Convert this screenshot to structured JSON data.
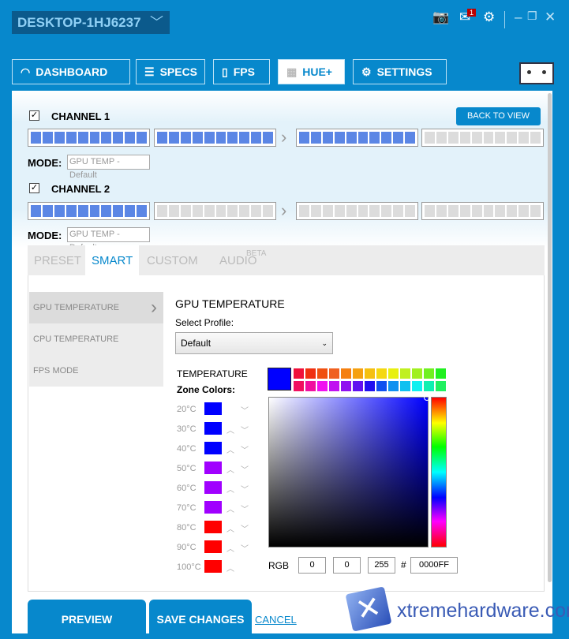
{
  "header": {
    "device": "DESKTOP-1HJ6237",
    "notification_count": "1"
  },
  "tabs": [
    {
      "label": "DASHBOARD",
      "icon": "gauge-icon"
    },
    {
      "label": "SPECS",
      "icon": "list-icon"
    },
    {
      "label": "FPS",
      "icon": "tablet-icon"
    },
    {
      "label": "HUE+",
      "icon": "grid-icon",
      "active": true
    },
    {
      "label": "SETTINGS",
      "icon": "gear-icon"
    }
  ],
  "channels": [
    {
      "label": "CHANNEL 1",
      "checked": true,
      "mode_label": "MODE:",
      "mode": "GPU TEMP - Default",
      "strips_lit": [
        true,
        true,
        true,
        false
      ]
    },
    {
      "label": "CHANNEL 2",
      "checked": true,
      "mode_label": "MODE:",
      "mode": "GPU TEMP - Default",
      "strips_lit": [
        true,
        false,
        false,
        false
      ]
    }
  ],
  "back_to_view": "BACK TO VIEW",
  "subtabs": [
    {
      "label": "PRESET"
    },
    {
      "label": "SMART",
      "active": true
    },
    {
      "label": "CUSTOM"
    },
    {
      "label": "AUDIO",
      "badge": "BETA"
    }
  ],
  "menu": [
    {
      "label": "GPU TEMPERATURE",
      "active": true
    },
    {
      "label": "CPU TEMPERATURE"
    },
    {
      "label": "FPS MODE"
    }
  ],
  "smart": {
    "title": "GPU TEMPERATURE",
    "profile_label": "Select Profile:",
    "profile": "Default",
    "zone_title": "TEMPERATURE",
    "zone_sub": "Zone Colors:",
    "zones": [
      {
        "t": "20°C",
        "c": "#0000ff"
      },
      {
        "t": "30°C",
        "c": "#0000ff"
      },
      {
        "t": "40°C",
        "c": "#0000ff"
      },
      {
        "t": "50°C",
        "c": "#a000ff"
      },
      {
        "t": "60°C",
        "c": "#a000ff"
      },
      {
        "t": "70°C",
        "c": "#a000ff"
      },
      {
        "t": "80°C",
        "c": "#ff0000"
      },
      {
        "t": "90°C",
        "c": "#ff0000"
      },
      {
        "t": "100°C",
        "c": "#ff0000"
      }
    ]
  },
  "picker": {
    "current": "#0000ff",
    "palette": [
      [
        "#f0103a",
        "#f03010",
        "#f05010",
        "#f06020",
        "#f58010",
        "#f5a010",
        "#f5c010",
        "#f5d810",
        "#e8f010",
        "#c0f020",
        "#a0f020",
        "#70f020",
        "#20f020"
      ],
      [
        "#f01060",
        "#f010a0",
        "#f010f0",
        "#c010f0",
        "#9010f0",
        "#6010f0",
        "#2010f0",
        "#1050f0",
        "#1090f0",
        "#10c0f0",
        "#10f0f0",
        "#10f0b0",
        "#20f060"
      ]
    ],
    "rgb_label": "RGB",
    "r": "0",
    "g": "0",
    "b": "255",
    "hash": "#",
    "hex": "0000FF"
  },
  "footer": {
    "preview": "PREVIEW",
    "save": "SAVE CHANGES",
    "cancel": "CANCEL"
  },
  "watermark": "xtremehardware.com",
  "colors": {
    "accent": "#0788cc",
    "led_on": "#5b86e5",
    "led_off": "#dcdcdc"
  }
}
